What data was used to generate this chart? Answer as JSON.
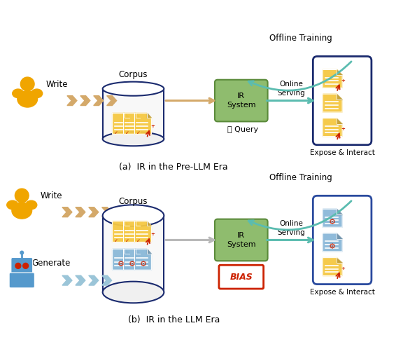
{
  "title_a": "(a)  IR in the Pre-LLM Era",
  "title_b": "(b)  IR in the LLM Era",
  "offline_training": "Offline Training",
  "online_serving": "Online\nServing",
  "query": "⌕ Query",
  "expose": "Expose & Interact",
  "write": "Write",
  "generate": "Generate",
  "corpus": "Corpus",
  "ir_system": "IR\nSystem",
  "bias": "BIAS",
  "bg_color": "#ffffff",
  "ir_box_color": "#8fbc6e",
  "ir_box_edge": "#5a8a3a",
  "corpus_edge_color": "#1a2a6e",
  "result_box_edge_a": "#1a2a6e",
  "result_box_edge_b": "#2a4a9e",
  "arrow_color_warm": "#d4a96a",
  "arrow_color_teal": "#5bbcb0",
  "arrow_color_gray": "#b8b8b8",
  "human_color": "#f0a500",
  "robot_color": "#5599cc",
  "doc_color_human": "#f5c842",
  "doc_color_robot": "#8ab8d8",
  "cursor_color": "#cc2200",
  "bias_color": "#cc2200",
  "gear_color": "#cc2200",
  "figure_width": 5.96,
  "figure_height": 4.88
}
